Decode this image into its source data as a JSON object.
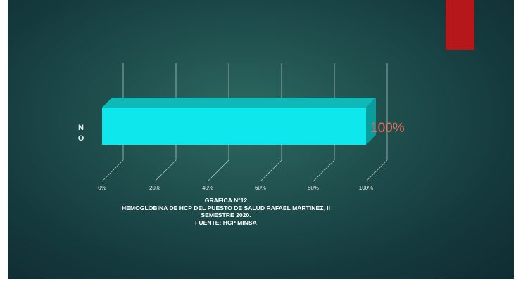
{
  "chart_data": {
    "type": "bar",
    "orientation": "horizontal",
    "style": "3d",
    "categories": [
      "NO"
    ],
    "values": [
      100
    ],
    "data_labels": [
      "100%"
    ],
    "xlim": [
      0,
      100
    ],
    "xticks": [
      "0%",
      "20%",
      "40%",
      "60%",
      "80%",
      "100%"
    ],
    "grid": true,
    "title_lines": [
      "GRAFICA N°12",
      "HEMOGLOBINA DE  HCP DEL PUESTO DE SALUD RAFAEL MARTINEZ, II",
      "SEMESTRE 2020.",
      "FUENTE: HCP MINSA"
    ],
    "colors": {
      "bar_front": "#0ee7ec",
      "bar_top": "#11b8b8",
      "bar_side": "#0a9d9e",
      "data_label": "#e86a5b",
      "accent": "#b5171a"
    }
  }
}
